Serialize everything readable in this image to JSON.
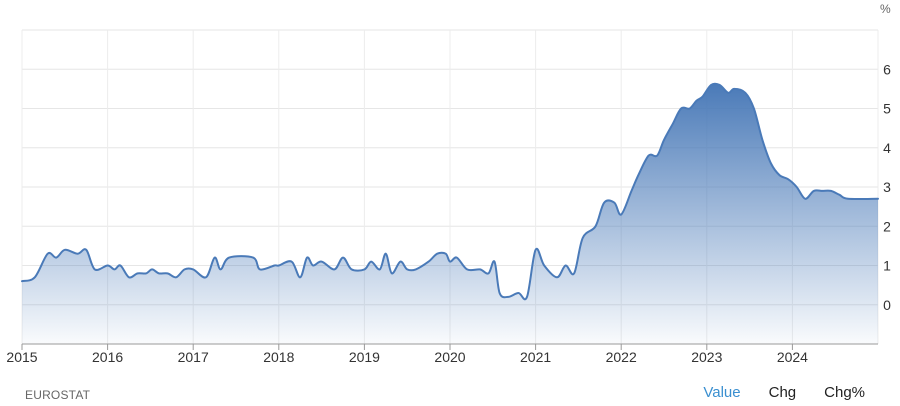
{
  "chart_data": {
    "type": "area",
    "unit": "%",
    "ylim": [
      -1,
      7
    ],
    "y_ticks": [
      0,
      1,
      2,
      3,
      4,
      5,
      6
    ],
    "x_ticks": [
      "2015",
      "2016",
      "2017",
      "2018",
      "2019",
      "2020",
      "2021",
      "2022",
      "2023",
      "2024"
    ],
    "x_range": [
      2015.0,
      2025.0
    ],
    "grid": true,
    "series": [
      {
        "color": "#4a7ab8",
        "points": [
          [
            2015.0,
            0.6
          ],
          [
            2015.15,
            0.7
          ],
          [
            2015.3,
            1.3
          ],
          [
            2015.4,
            1.2
          ],
          [
            2015.5,
            1.4
          ],
          [
            2015.65,
            1.3
          ],
          [
            2015.75,
            1.4
          ],
          [
            2015.85,
            0.9
          ],
          [
            2016.0,
            1.0
          ],
          [
            2016.08,
            0.9
          ],
          [
            2016.15,
            1.0
          ],
          [
            2016.25,
            0.7
          ],
          [
            2016.35,
            0.8
          ],
          [
            2016.45,
            0.8
          ],
          [
            2016.52,
            0.9
          ],
          [
            2016.6,
            0.8
          ],
          [
            2016.7,
            0.8
          ],
          [
            2016.8,
            0.7
          ],
          [
            2016.9,
            0.9
          ],
          [
            2017.0,
            0.9
          ],
          [
            2017.15,
            0.7
          ],
          [
            2017.25,
            1.2
          ],
          [
            2017.32,
            0.9
          ],
          [
            2017.42,
            1.2
          ],
          [
            2017.7,
            1.2
          ],
          [
            2017.78,
            0.9
          ],
          [
            2017.95,
            1.0
          ],
          [
            2018.0,
            1.0
          ],
          [
            2018.15,
            1.1
          ],
          [
            2018.25,
            0.7
          ],
          [
            2018.33,
            1.2
          ],
          [
            2018.4,
            1.0
          ],
          [
            2018.5,
            1.1
          ],
          [
            2018.65,
            0.9
          ],
          [
            2018.75,
            1.2
          ],
          [
            2018.85,
            0.9
          ],
          [
            2019.0,
            0.9
          ],
          [
            2019.08,
            1.1
          ],
          [
            2019.18,
            0.9
          ],
          [
            2019.25,
            1.3
          ],
          [
            2019.32,
            0.8
          ],
          [
            2019.42,
            1.1
          ],
          [
            2019.5,
            0.9
          ],
          [
            2019.6,
            0.9
          ],
          [
            2019.75,
            1.1
          ],
          [
            2019.85,
            1.3
          ],
          [
            2019.95,
            1.3
          ],
          [
            2020.0,
            1.1
          ],
          [
            2020.08,
            1.2
          ],
          [
            2020.2,
            0.9
          ],
          [
            2020.35,
            0.9
          ],
          [
            2020.45,
            0.8
          ],
          [
            2020.52,
            1.1
          ],
          [
            2020.58,
            0.3
          ],
          [
            2020.68,
            0.2
          ],
          [
            2020.8,
            0.3
          ],
          [
            2020.9,
            0.2
          ],
          [
            2021.0,
            1.4
          ],
          [
            2021.1,
            1.0
          ],
          [
            2021.25,
            0.7
          ],
          [
            2021.35,
            1.0
          ],
          [
            2021.45,
            0.8
          ],
          [
            2021.55,
            1.7
          ],
          [
            2021.7,
            2.0
          ],
          [
            2021.8,
            2.6
          ],
          [
            2021.92,
            2.6
          ],
          [
            2022.0,
            2.3
          ],
          [
            2022.12,
            2.9
          ],
          [
            2022.2,
            3.3
          ],
          [
            2022.32,
            3.8
          ],
          [
            2022.42,
            3.8
          ],
          [
            2022.5,
            4.2
          ],
          [
            2022.6,
            4.6
          ],
          [
            2022.7,
            5.0
          ],
          [
            2022.8,
            5.0
          ],
          [
            2022.88,
            5.2
          ],
          [
            2022.95,
            5.3
          ],
          [
            2023.05,
            5.6
          ],
          [
            2023.15,
            5.6
          ],
          [
            2023.25,
            5.4
          ],
          [
            2023.32,
            5.5
          ],
          [
            2023.45,
            5.4
          ],
          [
            2023.55,
            5.0
          ],
          [
            2023.65,
            4.2
          ],
          [
            2023.75,
            3.6
          ],
          [
            2023.85,
            3.3
          ],
          [
            2023.95,
            3.2
          ],
          [
            2024.05,
            3.0
          ],
          [
            2024.15,
            2.7
          ],
          [
            2024.25,
            2.9
          ],
          [
            2024.35,
            2.9
          ],
          [
            2024.45,
            2.9
          ],
          [
            2024.55,
            2.8
          ],
          [
            2024.65,
            2.7
          ],
          [
            2025.0,
            2.7
          ]
        ]
      }
    ]
  },
  "footer": {
    "source": "EUROSTAT",
    "tabs": [
      {
        "label": "Value",
        "active": true
      },
      {
        "label": "Chg",
        "active": false
      },
      {
        "label": "Chg%",
        "active": false
      }
    ]
  }
}
